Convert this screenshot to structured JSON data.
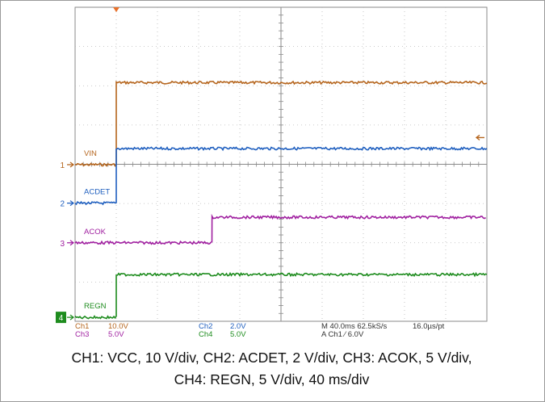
{
  "chart_data": {
    "type": "line",
    "title": "",
    "xlabel": "",
    "ylabel": "",
    "xlim": [
      0,
      400
    ],
    "ylim": [
      -4,
      4
    ],
    "x_unit": "ms",
    "y_unit": "div",
    "grid": true,
    "trigger_marker_x": 40,
    "series": [
      {
        "name": "VIN",
        "channel": "1",
        "color": "#b5651d",
        "x": [
          0,
          40,
          40,
          400
        ],
        "y": [
          -0.01,
          -0.01,
          2.08,
          2.08
        ]
      },
      {
        "name": "ACDET",
        "channel": "2",
        "color": "#1f5fbf",
        "x": [
          0,
          40,
          40,
          400
        ],
        "y": [
          -0.99,
          -0.99,
          0.4,
          0.4
        ]
      },
      {
        "name": "ACOK",
        "channel": "3",
        "color": "#a020a0",
        "x": [
          0,
          133,
          133,
          400
        ],
        "y": [
          -2.0,
          -2.0,
          -1.35,
          -1.35
        ]
      },
      {
        "name": "REGN",
        "channel": "4",
        "color": "#1e8c1e",
        "x": [
          0,
          40,
          40,
          400
        ],
        "y": [
          -3.9,
          -3.9,
          -2.81,
          -2.81
        ]
      }
    ],
    "trigger_level_arrow_y": 0.68
  },
  "readout": {
    "ch1": "Ch1",
    "ch1_scale": "10.0V",
    "ch3": "Ch3",
    "ch3_scale": "5.0V",
    "ch2": "Ch2",
    "ch2_scale": "2.0V",
    "ch4": "Ch4",
    "ch4_scale": "5.0V",
    "timebase": "M 40.0ms 62.5kS/s",
    "resolution": "16.0µs/pt",
    "trigger": "A  Ch1  ∕  6.0V"
  },
  "caption": {
    "line1": "CH1: VCC, 10 V/div, CH2: ACDET, 2 V/div, CH3: ACOK, 5 V/div,",
    "line2": "CH4: REGN, 5 V/div, 40 ms/div"
  }
}
